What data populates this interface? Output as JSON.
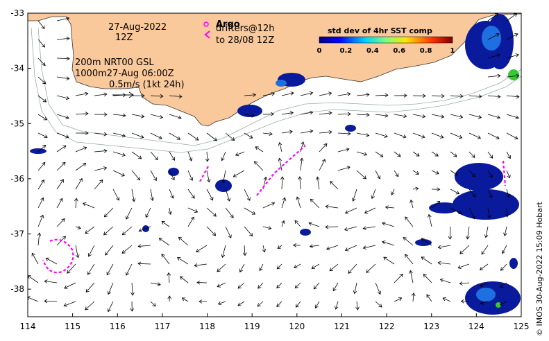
{
  "chart_data": {
    "type": "map",
    "x_ticks": [
      "114",
      "115",
      "116",
      "117",
      "118",
      "119",
      "120",
      "121",
      "122",
      "123",
      "124",
      "125"
    ],
    "y_ticks": [
      "-33",
      "-34",
      "-35",
      "-36",
      "-37",
      "-38"
    ],
    "xlim": [
      114,
      125
    ],
    "ylim": [
      -38.5,
      -33
    ],
    "date_lines": [
      "27-Aug-2022",
      "12Z"
    ],
    "product_lines": [
      "200m  NRT00 GSL",
      "1000m27-Aug 06:00Z"
    ],
    "scale_label": "0.5m/s (1kt 24h)",
    "legend": {
      "argo_label": "Argo",
      "drifters_line1": "drifters@12h",
      "drifters_line2": "to 28/08 12Z"
    },
    "colorbar": {
      "title": "std dev of 4hr SST comp",
      "ticks": [
        "0",
        "0.2",
        "0.4",
        "0.6",
        "0.8",
        "1"
      ],
      "range": [
        0,
        1
      ]
    },
    "credit": "© IMOS 30-Aug-2022 15:09 Hobart",
    "colors": {
      "land": "#f9c89b",
      "low": "#0a1a9c",
      "mid": "#1e6fe0",
      "drifter": "#ff00ff"
    }
  }
}
